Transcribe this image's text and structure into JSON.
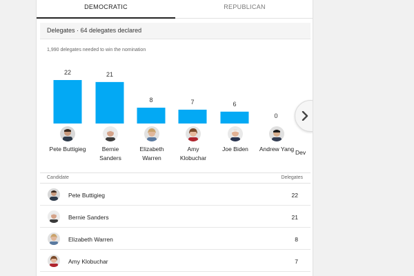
{
  "tabs": [
    {
      "label": "DEMOCRATIC",
      "active": true
    },
    {
      "label": "REPUBLICAN",
      "active": false
    }
  ],
  "header": {
    "title": "Delegates · 64 delegates declared"
  },
  "subtitle": "1,990 delegates needed to win the nomination",
  "accent_color": "#03a9f4",
  "chart_data": {
    "type": "bar",
    "categories": [
      "Pete Buttigieg",
      "Bernie Sanders",
      "Elizabeth Warren",
      "Amy Klobuchar",
      "Joe Biden",
      "Andrew Yang",
      "Dev"
    ],
    "values": [
      22,
      21,
      8,
      7,
      6,
      0,
      null
    ],
    "ylim": [
      0,
      22
    ],
    "legend": "none",
    "grid": false
  },
  "candidates": [
    {
      "line1": "Pete Buttigieg",
      "line2": ""
    },
    {
      "line1": "Bernie",
      "line2": "Sanders"
    },
    {
      "line1": "Elizabeth",
      "line2": "Warren"
    },
    {
      "line1": "Amy",
      "line2": "Klobuchar"
    },
    {
      "line1": "Joe Biden",
      "line2": ""
    },
    {
      "line1": "Andrew Yang",
      "line2": ""
    },
    {
      "line1": "Dev",
      "line2": ""
    }
  ],
  "table": {
    "headers": {
      "candidate": "Candidate",
      "delegates": "Delegates"
    },
    "rows": [
      {
        "name": "Pete Buttigieg",
        "delegates": "22"
      },
      {
        "name": "Bernie Sanders",
        "delegates": "21"
      },
      {
        "name": "Elizabeth Warren",
        "delegates": "8"
      },
      {
        "name": "Amy Klobuchar",
        "delegates": "7"
      }
    ]
  },
  "icons": {
    "next": "chevron-right-icon",
    "avatar": "candidate-photo"
  }
}
